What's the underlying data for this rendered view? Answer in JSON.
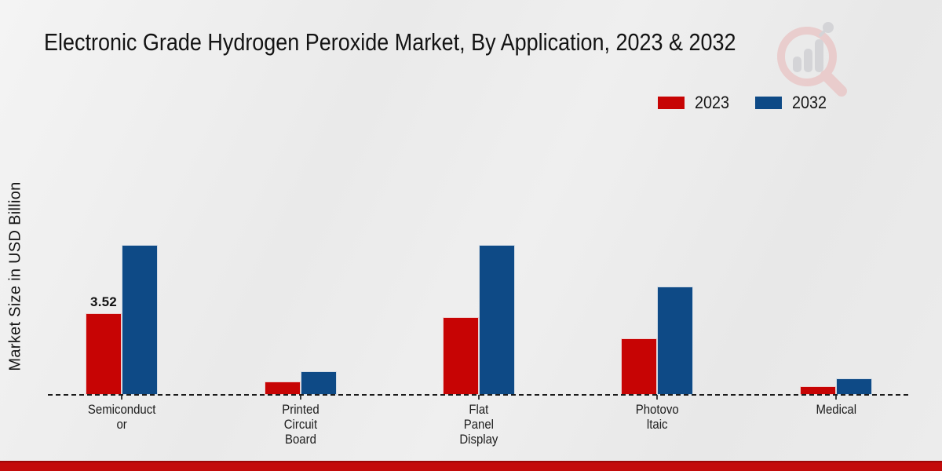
{
  "header": {
    "title": "Electronic Grade Hydrogen Peroxide Market, By Application, 2023 & 2032"
  },
  "y_axis": {
    "label": "Market Size in USD Billion"
  },
  "legend": {
    "items": [
      {
        "label": "2023",
        "color": "#c70404"
      },
      {
        "label": "2032",
        "color": "#0e4a86"
      }
    ]
  },
  "watermark": {
    "icon": "magnifier-bar-chart-logo",
    "ring_color": "#e9b6b6",
    "bars_color": "#c3c3c9"
  },
  "footer": {
    "color": "#c30b0b"
  },
  "chart_data": {
    "type": "bar",
    "title": "Electronic Grade Hydrogen Peroxide Market, By Application, 2023 & 2032",
    "xlabel": "",
    "ylabel": "Market Size in USD Billion",
    "ylim": [
      0,
      7
    ],
    "grid": false,
    "baseline_style": "dashed",
    "legend_position": "top-right",
    "categories": [
      "Semiconductor",
      "Printed Circuit Board",
      "Flat Panel Display",
      "Photovoltaic",
      "Medical"
    ],
    "category_display_lines": [
      [
        "Semiconduct",
        "or"
      ],
      [
        "Printed",
        "Circuit",
        "Board"
      ],
      [
        "Flat",
        "Panel",
        "Display"
      ],
      [
        "Photovo",
        "ltaic"
      ],
      [
        "Medical"
      ]
    ],
    "series": [
      {
        "name": "2023",
        "color": "#c70404",
        "values": [
          3.52,
          0.57,
          3.35,
          2.44,
          0.37
        ]
      },
      {
        "name": "2032",
        "color": "#0e4a86",
        "values": [
          6.45,
          1.02,
          6.45,
          4.66,
          0.72
        ]
      }
    ],
    "data_labels": [
      {
        "series": "2023",
        "category": "Semiconductor",
        "text": "3.52"
      }
    ]
  }
}
